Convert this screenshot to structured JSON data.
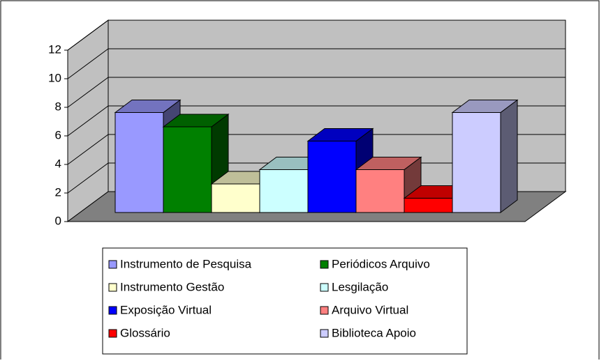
{
  "chart_data": {
    "type": "bar3d",
    "categories": [
      "Instrumento de Pesquisa",
      "Periódicos Arquivo",
      "Instrumento Gestão",
      "Lesgilação",
      "Exposição Virtual",
      "Arquivo Virtual",
      "Glossário",
      "Biblioteca Apoio"
    ],
    "values": [
      7,
      6,
      2,
      3,
      5,
      3,
      1,
      7
    ],
    "colors": [
      "#9999ff",
      "#008000",
      "#ffffcc",
      "#ccffff",
      "#0000ff",
      "#ff8080",
      "#ff0000",
      "#ccccff"
    ],
    "ylim": [
      0,
      12
    ],
    "yticks": [
      0,
      2,
      4,
      6,
      8,
      10,
      12
    ],
    "grid": true,
    "legend": "bottom"
  }
}
